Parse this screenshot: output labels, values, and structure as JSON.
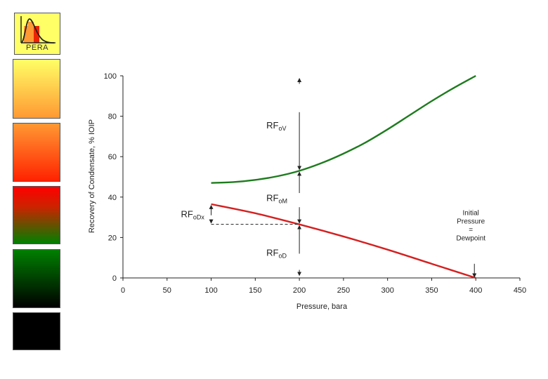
{
  "logo": {
    "text": "PERA",
    "icon": "distribution-curve-icon"
  },
  "legend_swatches": [
    "#ffff66",
    "#ff9933",
    "#ff0000",
    "#008000",
    "#000000"
  ],
  "chart_data": {
    "type": "line",
    "xlabel": "Pressure, bara",
    "ylabel": "Recovery of Condensate, % IOIP",
    "xlim": [
      0,
      450
    ],
    "ylim": [
      0,
      100
    ],
    "xticks": [
      0,
      50,
      100,
      150,
      200,
      250,
      300,
      350,
      400,
      450
    ],
    "yticks": [
      0,
      20,
      40,
      60,
      80,
      100
    ],
    "grid": false,
    "series": [
      {
        "color": "#1e7b1e",
        "x": [
          100,
          125,
          150,
          175,
          200,
          225,
          250,
          275,
          300,
          325,
          350,
          375,
          400
        ],
        "y": [
          47,
          47.4,
          48.5,
          50.3,
          53,
          56.8,
          61.5,
          67,
          73.5,
          80.5,
          87.5,
          94,
          100
        ]
      },
      {
        "color": "#d42020",
        "x": [
          100,
          150,
          200,
          250,
          300,
          350,
          400
        ],
        "y": [
          36.5,
          32,
          26.5,
          20.5,
          14,
          7,
          0
        ]
      }
    ],
    "annotations": {
      "rfov": {
        "main": "RF",
        "sub": "oV"
      },
      "rfom": {
        "main": "RF",
        "sub": "oM"
      },
      "rfodx": {
        "main": "RF",
        "sub": "oDx"
      },
      "rfod": {
        "main": "RF",
        "sub": "oD"
      },
      "dewpoint": [
        "Initial",
        "Pressure",
        "=",
        "Dewpoint"
      ]
    }
  }
}
